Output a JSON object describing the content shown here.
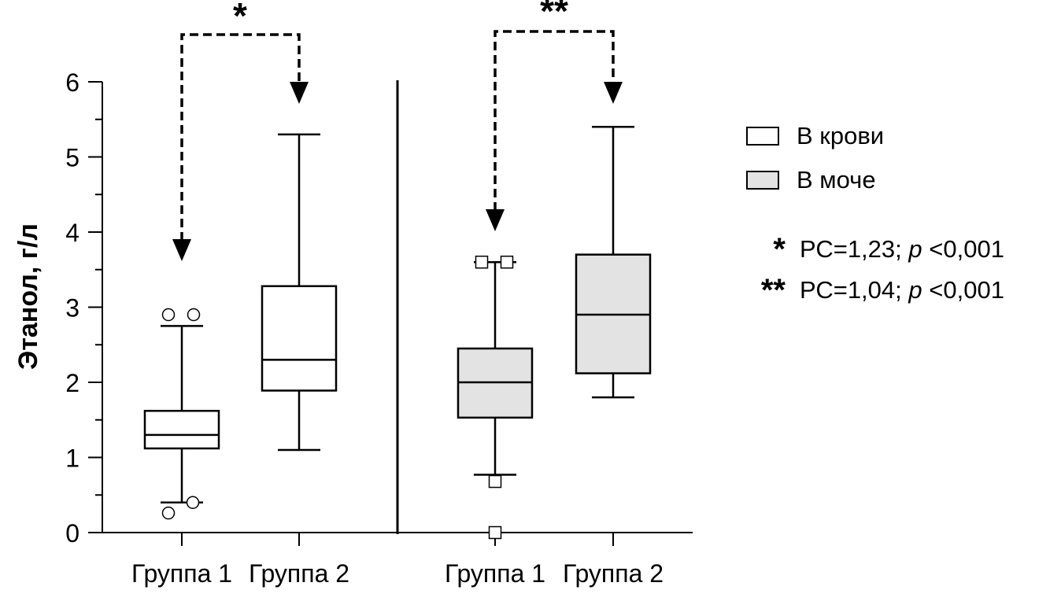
{
  "chart_data": {
    "type": "box",
    "ylabel": "Этанол, г/л",
    "ylim": [
      0,
      6
    ],
    "yticks": [
      0,
      1,
      2,
      3,
      4,
      5,
      6
    ],
    "categories": [
      "Группа 1",
      "Группа 2",
      "Группа 1",
      "Группа 2"
    ],
    "series": [
      {
        "name": "В крови",
        "color": "#ffffff",
        "boxes": [
          {
            "group": "Группа 1",
            "whisker_low": 0.4,
            "q1": 1.12,
            "median": 1.3,
            "q3": 1.62,
            "whisker_high": 2.75,
            "outliers": [
              2.9,
              2.9,
              0.4,
              0.26
            ]
          },
          {
            "group": "Группа 2",
            "whisker_low": 1.1,
            "q1": 1.89,
            "median": 2.3,
            "q3": 3.28,
            "whisker_high": 5.3,
            "outliers": []
          }
        ]
      },
      {
        "name": "В моче",
        "color": "#e3e3e3",
        "boxes": [
          {
            "group": "Группа 1",
            "whisker_low": 0.77,
            "q1": 1.53,
            "median": 2.0,
            "q3": 2.45,
            "whisker_high": 3.6,
            "outliers": [
              3.6,
              3.6,
              0.68,
              0.0
            ]
          },
          {
            "group": "Группа 2",
            "whisker_low": 1.8,
            "q1": 2.12,
            "median": 2.9,
            "q3": 3.7,
            "whisker_high": 5.4,
            "outliers": []
          }
        ]
      }
    ],
    "comparisons": [
      {
        "label": "*",
        "series": "В крови"
      },
      {
        "label": "**",
        "series": "В моче"
      }
    ],
    "legend": {
      "entries": [
        "В крови",
        "В моче"
      ],
      "placement": "right"
    },
    "annotations": [
      {
        "marker": "*",
        "text": "РС=1,23; ",
        "p": "p",
        "rest": " <0,001"
      },
      {
        "marker": "**",
        "text": "РС=1,04; ",
        "p": "p",
        "rest": " <0,001"
      }
    ]
  }
}
